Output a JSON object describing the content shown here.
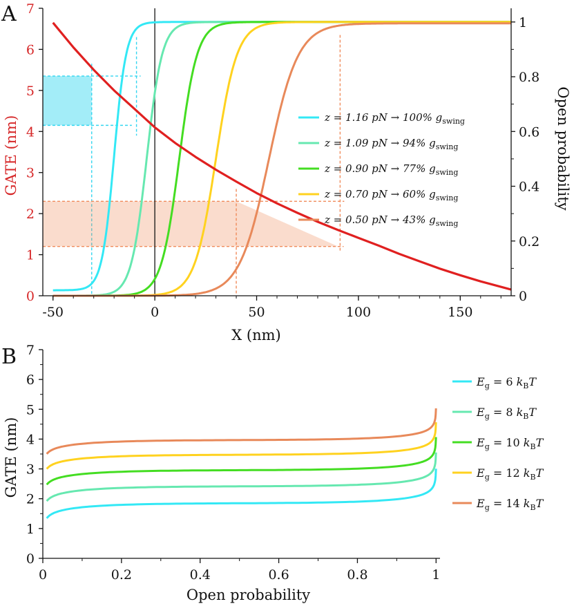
{
  "chart_data": [
    {
      "panel": "A",
      "type": "line",
      "xlabel": "X (nm)",
      "ylabel_left": "GATE (nm)",
      "ylabel_right": "Open probability",
      "xlim": [
        -55,
        175
      ],
      "ylim_left": [
        0,
        7
      ],
      "ylim_right": [
        0,
        1.05
      ],
      "xticks": [
        -50,
        0,
        50,
        100,
        150
      ],
      "yticks_left": [
        0,
        1,
        2,
        3,
        4,
        5,
        6,
        7
      ],
      "yticks_right": [
        0,
        0.2,
        0.4,
        0.6,
        0.8,
        1
      ],
      "gate_curve": {
        "color": "#e02020",
        "axis": "left",
        "x": [
          -50,
          -40,
          -30,
          -20,
          -10,
          0,
          10,
          20,
          30,
          40,
          50,
          60,
          70,
          80,
          90,
          100,
          110,
          120,
          130,
          140,
          150,
          160,
          175
        ],
        "y": [
          6.65,
          6.05,
          5.5,
          5.0,
          4.55,
          4.1,
          3.72,
          3.38,
          3.07,
          2.78,
          2.5,
          2.25,
          2.02,
          1.8,
          1.6,
          1.41,
          1.22,
          1.02,
          0.84,
          0.66,
          0.5,
          0.35,
          0.15
        ]
      },
      "series": [
        {
          "label_pre": "z = 1.16 pN → 100% g",
          "label_sub": "swing",
          "color": "#33e8f5",
          "midpoint": -20,
          "width": 3,
          "ymin": 0.02,
          "ymax": 1.0
        },
        {
          "label_pre": "z = 1.09 pN → 94% g",
          "label_sub": "swing",
          "color": "#66e8b0",
          "midpoint": -4,
          "width": 3.8,
          "ymin": 0.0,
          "ymax": 1.0
        },
        {
          "label_pre": "z = 0.90 pN → 77% g",
          "label_sub": "swing",
          "color": "#44dd22",
          "midpoint": 12,
          "width": 4.4,
          "ymin": 0.0,
          "ymax": 1.0
        },
        {
          "label_pre": "z = 0.70 pN → 60% g",
          "label_sub": "swing",
          "color": "#ffd21f",
          "midpoint": 30,
          "width": 5.2,
          "ymin": 0.0,
          "ymax": 1.0
        },
        {
          "label_pre": "z = 0.50 pN → 43% g",
          "label_sub": "swing",
          "color": "#e8895a",
          "midpoint": 56,
          "width": 7.2,
          "ymin": 0.0,
          "ymax": 0.995
        }
      ],
      "bands": [
        {
          "color": "#33d6f0",
          "ymin": 4.15,
          "ymax": 5.35,
          "x_start": -55,
          "x_end_low": -14,
          "x_end_high": -31,
          "v1": -31,
          "v1_top": 5.65,
          "v2": -9,
          "v2_top": 6.3
        },
        {
          "color": "#f08a5a",
          "ymin": 1.2,
          "ymax": 2.3,
          "x_start": -55,
          "x_end_low": 90,
          "x_end_high": 40,
          "v1": 40,
          "v1_top": 2.6,
          "v2": 91,
          "v2_top": 6.35
        }
      ],
      "zero_line_x": 0
    },
    {
      "panel": "B",
      "type": "line",
      "xlabel": "Open probability",
      "ylabel": "GATE (nm)",
      "xlim": [
        0,
        1.01
      ],
      "ylim": [
        0,
        7
      ],
      "xticks": [
        0,
        0.2,
        0.4,
        0.6,
        0.8,
        1
      ],
      "xtick_labels": [
        "0",
        "0.2",
        "0.4",
        "0.6",
        "0.8",
        "1"
      ],
      "yticks": [
        0,
        1,
        2,
        3,
        4,
        5,
        6,
        7
      ],
      "series": [
        {
          "label_pre": "E",
          "label_sub": "g",
          "label_post": " = 6 ",
          "label_k": "k",
          "label_ksub": "B",
          "label_T": "T",
          "color": "#33e8f5",
          "energy": 6
        },
        {
          "label_pre": "E",
          "label_sub": "g",
          "label_post": " = 8 ",
          "label_k": "k",
          "label_ksub": "B",
          "label_T": "T",
          "color": "#66e8b0",
          "energy": 8
        },
        {
          "label_pre": "E",
          "label_sub": "g",
          "label_post": " = 10 ",
          "label_k": "k",
          "label_ksub": "B",
          "label_T": "T",
          "color": "#44dd22",
          "energy": 10
        },
        {
          "label_pre": "E",
          "label_sub": "g",
          "label_post": " = 12 ",
          "label_k": "k",
          "label_ksub": "B",
          "label_T": "T",
          "color": "#ffd21f",
          "energy": 12
        },
        {
          "label_pre": "E",
          "label_sub": "g",
          "label_post": " = 14 ",
          "label_k": "k",
          "label_ksub": "B",
          "label_T": "T",
          "color": "#e8895a",
          "energy": 14
        }
      ]
    }
  ],
  "panel_labels": [
    "A",
    "B"
  ]
}
